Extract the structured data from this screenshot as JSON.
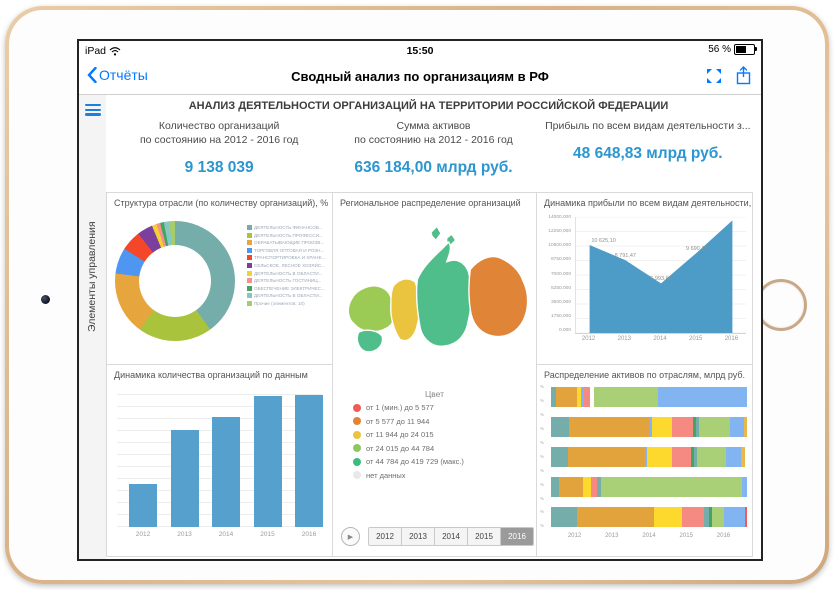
{
  "status_bar": {
    "device": "iPad",
    "time": "15:50",
    "battery": "56 %",
    "battery_level": 0.56
  },
  "nav_bar": {
    "back_label": "Отчёты",
    "title": "Сводный анализ по организациям в РФ"
  },
  "sidebar": {
    "label": "Элементы управления"
  },
  "dashboard_header": {
    "title": "АНАЛИЗ ДЕЯТЕЛЬНОСТИ ОРГАНИЗАЦИЙ НА ТЕРРИТОРИИ РОССИЙСКОЙ ФЕДЕРАЦИИ"
  },
  "kpis": [
    {
      "label": "Количество организаций",
      "sublabel": "по состоянию на 2012 - 2016 год",
      "value": "9 138 039"
    },
    {
      "label": "Сумма активов",
      "sublabel": "по состоянию на 2012 - 2016 год",
      "value": "636 184,00 млрд руб."
    },
    {
      "label": "Прибыль по всем видам деятельности з...",
      "sublabel": "",
      "value": "48 648,83 млрд руб."
    }
  ],
  "accent_colors": {
    "ios_blue": "#007aff",
    "kpi_blue": "#2b96cf",
    "chart_blue": "#55a0cd"
  },
  "chart_data": [
    {
      "type": "pie",
      "title": "Структура отрасли (по количеству организаций), %",
      "legend_position": "right",
      "segments": [
        {
          "label": "ДЕЯТЕЛЬНОСТЬ ФИНАНСОВ...",
          "color": "#74ada9",
          "value": 40
        },
        {
          "label": "ДЕЯТЕЛЬНОСТЬ ПРОФЕССИ...",
          "color": "#a9c33d",
          "value": 20
        },
        {
          "label": "ОБРАБАТЫВАЮЩИЕ ПРОИЗВ...",
          "color": "#e6a63d",
          "value": 17
        },
        {
          "label": "ТОРГОВЛЯ ОПТОВАЯ И РОЗН...",
          "color": "#4f96f3",
          "value": 7
        },
        {
          "label": "ТРАНСПОРТИРОВКА И ХРАНЕ...",
          "color": "#f4472a",
          "value": 5.5
        },
        {
          "label": "СЕЛЬСКОЕ, ЛЕСНОЕ ХОЗЯЙС...",
          "color": "#7b3f9d",
          "value": 4.2
        },
        {
          "label": "ДЕЯТЕЛЬНОСТЬ В ОБЛАСТИ...",
          "color": "#f2d231",
          "value": 1.3
        },
        {
          "label": "ДЕЯТЕЛЬНОСТЬ ГОСТИНИЦ...",
          "color": "#f5908a",
          "value": 1
        },
        {
          "label": "ОБЕСПЕЧЕНИЕ ЭЛЕКТРИЧЕС...",
          "color": "#43a564",
          "value": 1
        },
        {
          "label": "ДЕЯТЕЛЬНОСТЬ В ОБЛАСТИ...",
          "color": "#84c7c3",
          "value": 1.5
        },
        {
          "label": "Прочие (элементов: 10)",
          "color": "#a5cd6b",
          "value": 1.5
        }
      ]
    },
    {
      "type": "map",
      "title": "Региональное распределение организаций",
      "legend_title": "Цвет",
      "legend": [
        {
          "label": "от 1 (мин.) до 5 577",
          "color": "#f05b57"
        },
        {
          "label": "от 5 577 до 11 944",
          "color": "#e08437"
        },
        {
          "label": "от 11 944 до 24 015",
          "color": "#eac43e"
        },
        {
          "label": "от 24 015 до 44 784",
          "color": "#8fc75e"
        },
        {
          "label": "от 44 784 до 419 729 (макс.)",
          "color": "#3dbd7d"
        },
        {
          "label": "нет данных",
          "color": "#e8e8e8"
        }
      ],
      "regions": [
        {
          "id": "european-west",
          "color": "#9ccb55"
        },
        {
          "id": "south-west",
          "color": "#4fbe8a"
        },
        {
          "id": "ural",
          "color": "#eac43e"
        },
        {
          "id": "siberia",
          "color": "#4fbe8a"
        },
        {
          "id": "far-east",
          "color": "#e08437"
        },
        {
          "id": "islands",
          "color": "#4fbe8a"
        }
      ],
      "year_selector": {
        "play_icon": "▶",
        "years": [
          "2012",
          "2013",
          "2014",
          "2015",
          "2016"
        ],
        "selected": "2016"
      }
    },
    {
      "type": "area",
      "title": "Динамика прибыли по всем видам деятельности,",
      "x": [
        "2012",
        "2013",
        "2014",
        "2015",
        "2016"
      ],
      "values": [
        10625.1,
        8791.47,
        5993.6,
        9690.48,
        13600
      ],
      "point_labels": [
        "10 625,10",
        "8 791,47",
        "5 993,60",
        "9 690,48",
        ""
      ],
      "ylim": [
        0,
        14000
      ],
      "y_ticks": [
        "14000,000",
        "12250,000",
        "10500,000",
        "8750,000",
        "7000,000",
        "5250,000",
        "3500,000",
        "1750,000",
        "0,000"
      ],
      "fill_color": "#4d9cc7",
      "grid": true
    },
    {
      "type": "bar",
      "title": "Динамика количества организаций по данным",
      "categories": [
        "2012",
        "2013",
        "2014",
        "2015",
        "2016"
      ],
      "values_pct_of_max": [
        31,
        70,
        80,
        95,
        96
      ],
      "bar_color": "#55a0cd",
      "grid": true
    },
    {
      "type": "stacked-bar-horizontal",
      "title": "Распределение активов по отраслям, млрд руб.",
      "x_ticks": [
        "2012",
        "2013",
        "2014",
        "2015",
        "2016"
      ],
      "y_tick_symbol": "%",
      "y_tick_count": 11,
      "rows": [
        {
          "segments": [
            [
              "#74ada9",
              2.3
            ],
            [
              "#e2a23c",
              10.9
            ],
            [
              "#fdd92e",
              2.3
            ],
            [
              "#82b4f2",
              1.1
            ],
            [
              "#f58a83",
              3.2
            ],
            [
              "#ffffff",
              2.4
            ],
            [
              "#a9cf77",
              32.5
            ],
            [
              "#82b4f2",
              45.3
            ]
          ]
        },
        {
          "segments": [
            [
              "#74ada9",
              9.4
            ],
            [
              "#e2a23c",
              40.6
            ],
            [
              "#82b4f2",
              1.3
            ],
            [
              "#fdd92e",
              10.4
            ],
            [
              "#f58a83",
              10.9
            ],
            [
              "#43a564",
              1.3
            ],
            [
              "#74ada9",
              1.5
            ],
            [
              "#a9cf77",
              16.0
            ],
            [
              "#82b4f2",
              7.0
            ],
            [
              "#e8b84a",
              1.5
            ]
          ]
        },
        {
          "segments": [
            [
              "#74ada9",
              8.9
            ],
            [
              "#e2a23c",
              39.2
            ],
            [
              "#82b4f2",
              0.9
            ],
            [
              "#fdd92e",
              12.6
            ],
            [
              "#f58a83",
              10.0
            ],
            [
              "#43a564",
              1.4
            ],
            [
              "#74ada9",
              1.4
            ],
            [
              "#a9cf77",
              15.1
            ],
            [
              "#82b4f2",
              7.5
            ],
            [
              "#e8b84a",
              1.9
            ]
          ]
        },
        {
          "segments": [
            [
              "#74ada9",
              4.2
            ],
            [
              "#e2a23c",
              11.9
            ],
            [
              "#fdd92e",
              4.2
            ],
            [
              "#f58a83",
              3.4
            ],
            [
              "#74ada9",
              1.9
            ],
            [
              "#a9cf77",
              71.7
            ],
            [
              "#82b4f2",
              2.8
            ]
          ]
        },
        {
          "segments": [
            [
              "#74ada9",
              13.2
            ],
            [
              "#e2a23c",
              39.6
            ],
            [
              "#fdd92e",
              14.2
            ],
            [
              "#f58a83",
              11.3
            ],
            [
              "#74ada9",
              2.3
            ],
            [
              "#43a564",
              1.5
            ],
            [
              "#a9cf77",
              6.0
            ],
            [
              "#82b4f2",
              10.9
            ],
            [
              "#f05b57",
              0.9
            ]
          ]
        }
      ]
    }
  ]
}
